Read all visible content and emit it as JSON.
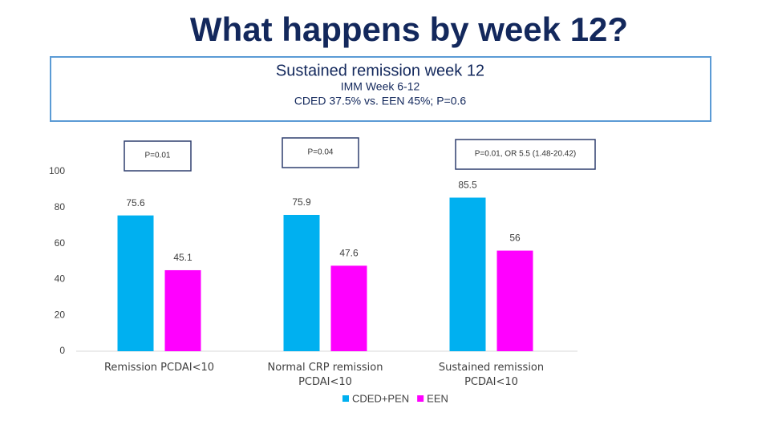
{
  "title": "What happens by week 12?",
  "summary_box": {
    "heading": "Sustained remission week 12",
    "line1": "IMM Week 6-12",
    "line2": "CDED  37.5% vs. EEN 45%; P=0.6"
  },
  "chart_data": {
    "type": "bar",
    "categories": [
      "Remission PCDAI<10",
      "Normal CRP remission PCDAI<10",
      "Sustained remission PCDAI<10"
    ],
    "series": [
      {
        "name": "CDED+PEN",
        "color": "#00b0f0",
        "values": [
          75.6,
          75.9,
          85.5
        ]
      },
      {
        "name": "EEN",
        "color": "#ff00ff",
        "values": [
          45.1,
          47.6,
          56
        ]
      }
    ],
    "annotations": [
      "P=0.01",
      "P=0.04",
      "P=0.01,  OR 5.5 (1.48-20.42)"
    ],
    "ylim": [
      0,
      100
    ],
    "yticks": [
      0,
      20,
      40,
      60,
      80,
      100
    ],
    "grid": false,
    "legend": "bottom"
  }
}
